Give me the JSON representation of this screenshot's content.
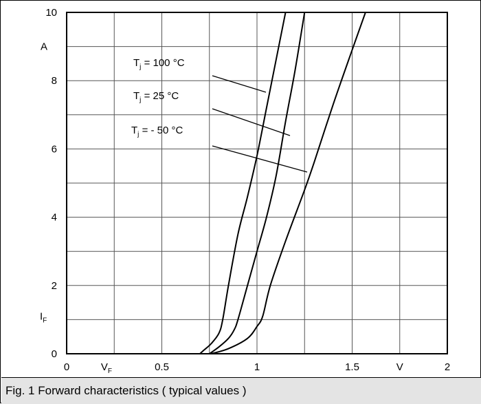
{
  "caption": "Fig. 1 Forward characteristics ( typical values )",
  "chart_data": {
    "type": "line",
    "xlim": [
      0,
      2
    ],
    "ylim": [
      0,
      10
    ],
    "grid": true,
    "x_ticks": [
      {
        "value": 0,
        "label": "0"
      },
      {
        "value": 0.5,
        "label": "0.5"
      },
      {
        "value": 1,
        "label": "1"
      },
      {
        "value": 1.5,
        "label": "1.5"
      },
      {
        "value": 2,
        "label": "2"
      }
    ],
    "y_ticks": [
      {
        "value": 0,
        "label": "0"
      },
      {
        "value": 2,
        "label": "2"
      },
      {
        "value": 4,
        "label": "4"
      },
      {
        "value": 6,
        "label": "6"
      },
      {
        "value": 8,
        "label": "8"
      },
      {
        "value": 10,
        "label": "10"
      }
    ],
    "x_unit": "V",
    "y_unit": "A",
    "x_symbol": {
      "main": "V",
      "sub": "F"
    },
    "y_symbol": {
      "main": "I",
      "sub": "F"
    },
    "series": [
      {
        "label": {
          "main": "T",
          "sub": "j",
          "rest": " = 100 °C"
        },
        "points": [
          [
            0.7,
            0
          ],
          [
            0.72,
            0.1
          ],
          [
            0.76,
            0.3
          ],
          [
            0.8,
            0.6
          ],
          [
            0.82,
            1.0
          ],
          [
            0.85,
            2.0
          ],
          [
            0.9,
            3.5
          ],
          [
            0.95,
            4.6
          ],
          [
            1.0,
            5.8
          ],
          [
            1.05,
            7.2
          ],
          [
            1.1,
            8.6
          ],
          [
            1.15,
            10.0
          ]
        ]
      },
      {
        "label": {
          "main": "T",
          "sub": "j",
          "rest": " =  25 °C"
        },
        "points": [
          [
            0.75,
            0
          ],
          [
            0.8,
            0.2
          ],
          [
            0.85,
            0.45
          ],
          [
            0.88,
            0.7
          ],
          [
            0.9,
            1.0
          ],
          [
            0.95,
            2.0
          ],
          [
            1.0,
            3.0
          ],
          [
            1.05,
            4.0
          ],
          [
            1.1,
            5.2
          ],
          [
            1.15,
            6.8
          ],
          [
            1.2,
            8.3
          ],
          [
            1.25,
            10.0
          ]
        ]
      },
      {
        "label": {
          "main": "T",
          "sub": "j",
          "rest": " =  - 50 °C"
        },
        "points": [
          [
            0.76,
            0
          ],
          [
            0.85,
            0.15
          ],
          [
            0.95,
            0.45
          ],
          [
            1.0,
            0.8
          ],
          [
            1.03,
            1.1
          ],
          [
            1.07,
            2.0
          ],
          [
            1.15,
            3.3
          ],
          [
            1.25,
            4.8
          ],
          [
            1.3,
            5.6
          ],
          [
            1.4,
            7.3
          ],
          [
            1.5,
            8.9
          ],
          [
            1.57,
            10.0
          ]
        ]
      }
    ]
  }
}
